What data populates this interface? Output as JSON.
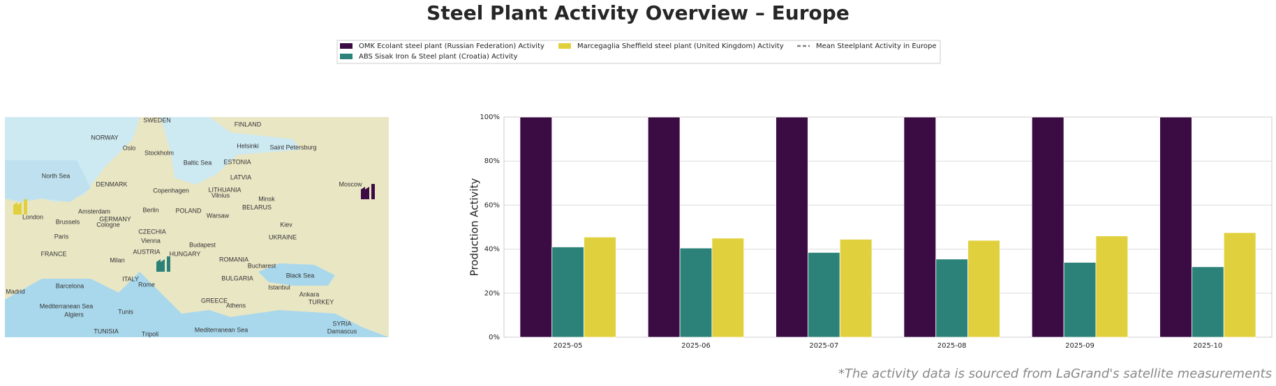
{
  "chart_data": {
    "type": "bar",
    "title": "Steel Plant Activity Overview – Europe",
    "ylabel": "Production Activity",
    "categories": [
      "2025-05",
      "2025-06",
      "2025-07",
      "2025-08",
      "2025-09",
      "2025-10"
    ],
    "series": [
      {
        "name": "OMK Ecolant steel plant (Russian Federation) Activity",
        "color": "#3b0c44",
        "values": [
          100,
          100,
          100,
          100,
          100,
          100
        ]
      },
      {
        "name": "ABS Sisak Iron & Steel plant (Croatia) Activity",
        "color": "#2c8178",
        "values": [
          41,
          40.5,
          38.5,
          35.5,
          34,
          32
        ]
      },
      {
        "name": "Marcegaglia Sheffield steel plant (United Kingdom) Activity",
        "color": "#e1d03d",
        "values": [
          45.5,
          45,
          44.5,
          44,
          46,
          47.5
        ]
      },
      {
        "name": "Mean Steelplant Activity in Europe",
        "color": "#808080",
        "type": "line",
        "dashed": true,
        "values": [
          null,
          null,
          null,
          null,
          null,
          null
        ]
      }
    ],
    "ylim": [
      0,
      100
    ],
    "yticks": [
      {
        "value": 0,
        "label": "0%"
      },
      {
        "value": 20,
        "label": "20%"
      },
      {
        "value": 40,
        "label": "40%"
      },
      {
        "value": 60,
        "label": "60%"
      },
      {
        "value": 80,
        "label": "80%"
      },
      {
        "value": 100,
        "label": "100%"
      }
    ],
    "grid": true,
    "note": "*The activity data is sourced from LaGrand's satellite measurements"
  },
  "map": {
    "labels": [
      "SWEDEN",
      "FINLAND",
      "NORWAY",
      "Oslo",
      "Stockholm",
      "Helsinki",
      "Saint Petersburg",
      "North Sea",
      "Baltic Sea",
      "ESTONIA",
      "DENMARK",
      "LATVIA",
      "Moscow",
      "Copenhagen",
      "LITHUANIA",
      "Vilnius",
      "Minsk",
      "London",
      "Amsterdam",
      "Berlin",
      "POLAND",
      "Warsaw",
      "BELARUS",
      "Brussels",
      "GERMANY",
      "Cologne",
      "Kiev",
      "Paris",
      "CZECHIA",
      "UKRAINE",
      "Vienna",
      "Budapest",
      "AUSTRIA",
      "HUNGARY",
      "FRANCE",
      "Milan",
      "ROMANIA",
      "Bucharest",
      "ITALY",
      "Rome",
      "BULGARIA",
      "Black Sea",
      "Madrid",
      "Barcelona",
      "Istanbul",
      "Ankara",
      "Mediterranean Sea",
      "TURKEY",
      "GREECE",
      "Athens",
      "Tunis",
      "Algiers",
      "SYRIA",
      "TUNISIA",
      "Tripoli",
      "Mediterranean Sea",
      "Damascus"
    ]
  }
}
